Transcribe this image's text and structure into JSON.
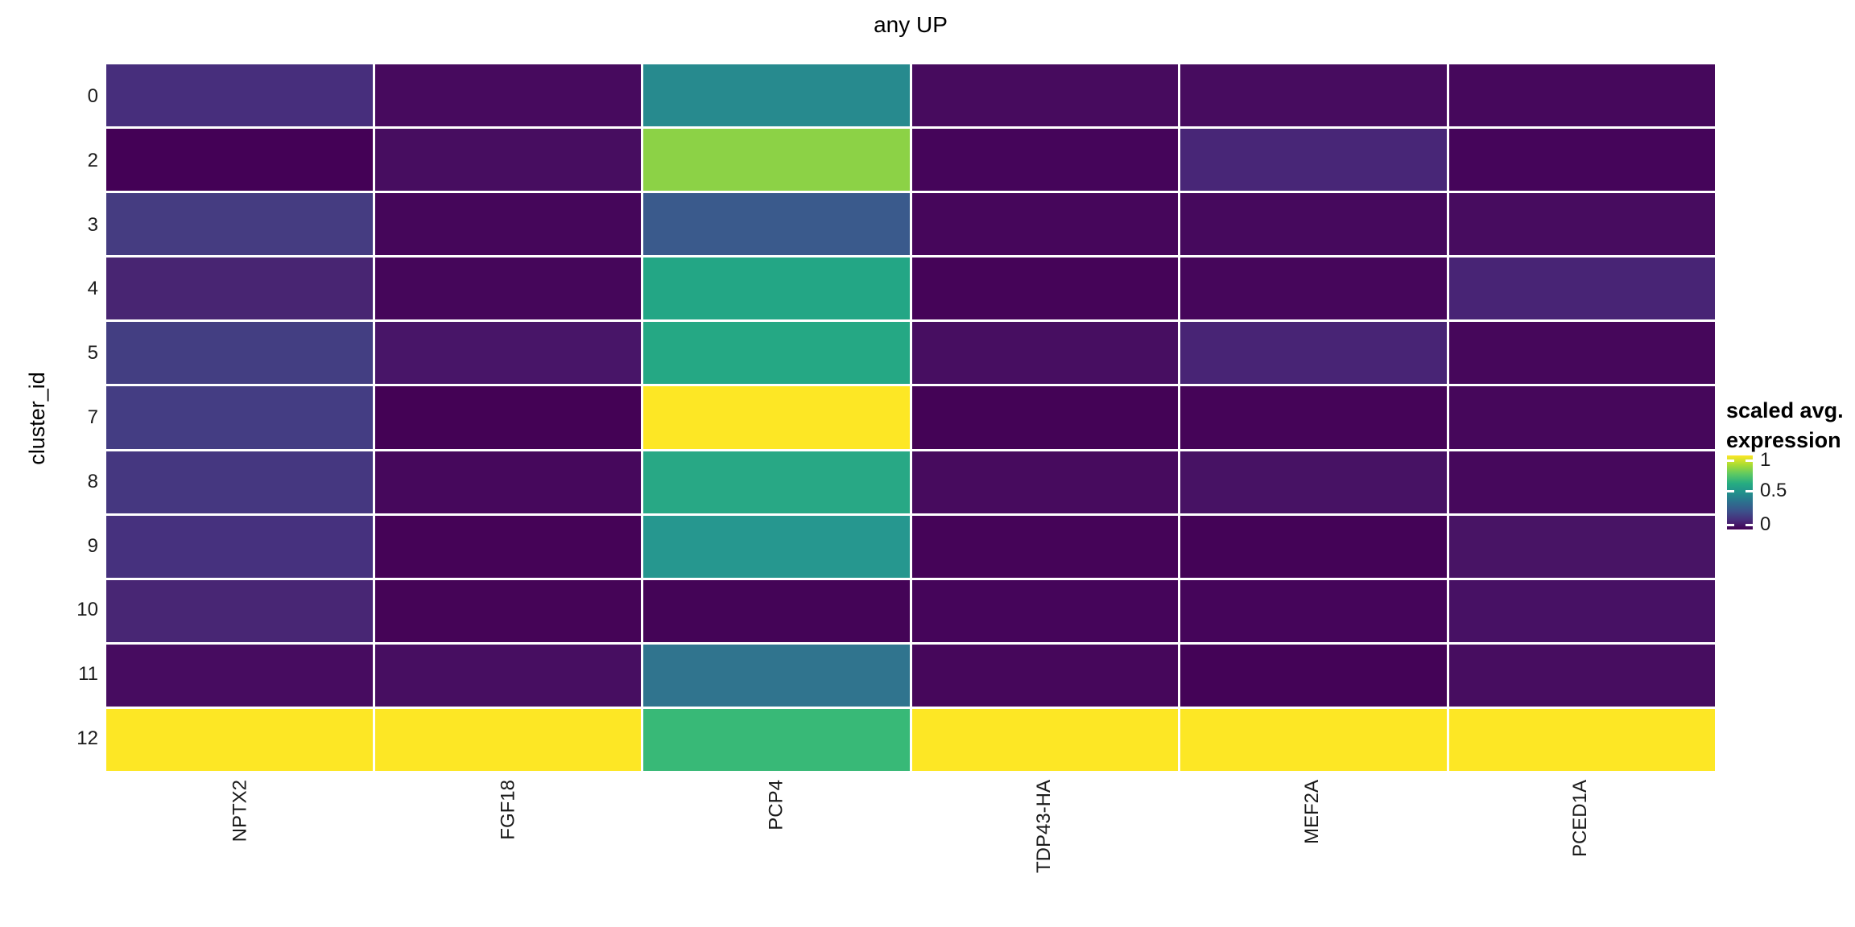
{
  "title": "any UP",
  "axes": {
    "y_title": "cluster_id",
    "row_labels": [
      "0",
      "2",
      "3",
      "4",
      "5",
      "7",
      "8",
      "9",
      "10",
      "11",
      "12"
    ],
    "col_labels": [
      "NPTX2",
      "FGF18",
      "PCP4",
      "TDP43-HA",
      "MEF2A",
      "PCED1A"
    ]
  },
  "legend": {
    "title_lines": [
      "scaled avg.",
      "expression"
    ],
    "tick_labels": [
      "1",
      "0.5",
      "0"
    ],
    "colormap": "viridis",
    "min_color": "#440154",
    "max_color": "#FDE725"
  },
  "chart_data": {
    "type": "heatmap",
    "title": "any UP",
    "xlabel": "",
    "ylabel": "cluster_id",
    "rows": [
      "0",
      "2",
      "3",
      "4",
      "5",
      "7",
      "8",
      "9",
      "10",
      "11",
      "12"
    ],
    "columns": [
      "NPTX2",
      "FGF18",
      "PCP4",
      "TDP43-HA",
      "MEF2A",
      "PCED1A"
    ],
    "legend_title": "scaled avg. expression",
    "legend_ticks": [
      0,
      0.5,
      1
    ],
    "value_range": [
      0,
      1
    ],
    "grid": false,
    "values": [
      [
        0.12,
        0.05,
        0.47,
        0.05,
        0.06,
        0.04
      ],
      [
        0.0,
        0.06,
        0.84,
        0.02,
        0.1,
        0.02
      ],
      [
        0.19,
        0.03,
        0.29,
        0.03,
        0.04,
        0.06
      ],
      [
        0.11,
        0.03,
        0.56,
        0.02,
        0.03,
        0.1
      ],
      [
        0.2,
        0.08,
        0.57,
        0.07,
        0.1,
        0.03
      ],
      [
        0.2,
        0.01,
        1.0,
        0.01,
        0.02,
        0.03
      ],
      [
        0.16,
        0.04,
        0.57,
        0.05,
        0.08,
        0.04
      ],
      [
        0.14,
        0.02,
        0.52,
        0.02,
        0.02,
        0.08
      ],
      [
        0.11,
        0.02,
        0.01,
        0.03,
        0.03,
        0.07
      ],
      [
        0.06,
        0.07,
        0.42,
        0.04,
        0.02,
        0.06
      ],
      [
        1.0,
        1.0,
        0.64,
        1.0,
        1.0,
        1.0
      ]
    ],
    "cell_colors": [
      [
        "#472E7C",
        "#470A5E",
        "#278A8E",
        "#470B5E",
        "#470C5F",
        "#46085C"
      ],
      [
        "#440156",
        "#470D60",
        "#8CD246",
        "#45055A",
        "#482677",
        "#45055A"
      ],
      [
        "#453C81",
        "#45065A",
        "#3A5A8C",
        "#46065B",
        "#46095D",
        "#470C5F"
      ],
      [
        "#482572",
        "#45065A",
        "#23A685",
        "#450458",
        "#46065B",
        "#482475"
      ],
      [
        "#433E82",
        "#481568",
        "#25A884",
        "#470E61",
        "#482475",
        "#46075B"
      ],
      [
        "#443D83",
        "#440255",
        "#FDE725",
        "#440356",
        "#450458",
        "#46075B"
      ],
      [
        "#453780",
        "#46085C",
        "#28A885",
        "#470B5E",
        "#471264",
        "#46085C"
      ],
      [
        "#46317E",
        "#450357",
        "#26978F",
        "#450458",
        "#440357",
        "#481465"
      ],
      [
        "#482674",
        "#450457",
        "#440457",
        "#45055A",
        "#45055A",
        "#471164"
      ],
      [
        "#470C60",
        "#470E61",
        "#30748E",
        "#46075B",
        "#440357",
        "#470D60"
      ],
      [
        "#FDE725",
        "#FDE725",
        "#38B977",
        "#FDE725",
        "#FDE725",
        "#FDE725"
      ]
    ]
  }
}
